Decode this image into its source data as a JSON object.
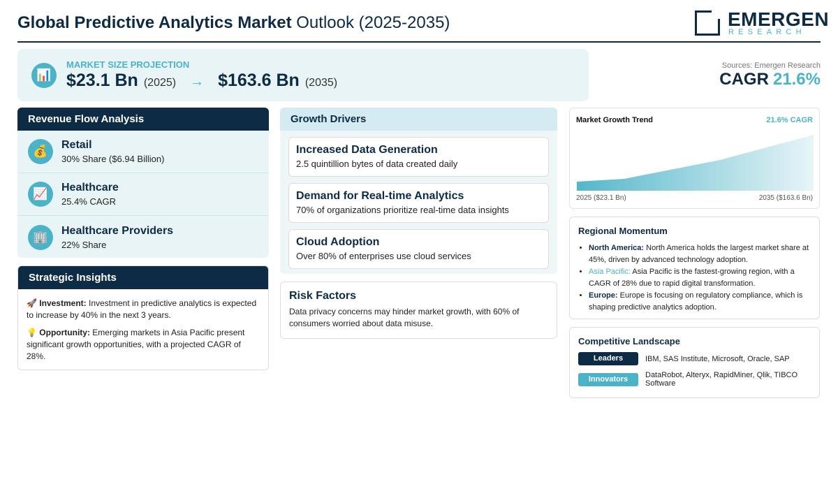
{
  "header": {
    "title_bold": "Global Predictive Analytics Market",
    "title_rest": "Outlook (2025-2035)",
    "logo_main": "EMERGEN",
    "logo_sub": "RESEARCH"
  },
  "projection": {
    "icon": "📊",
    "label": "MARKET SIZE PROJECTION",
    "start_value": "$23.1 Bn",
    "start_year": "(2025)",
    "arrow": "→",
    "end_value": "$163.6 Bn",
    "end_year": "(2035)"
  },
  "cagr": {
    "source": "Sources: Emergen Research",
    "label": "CAGR",
    "value": "21.6%"
  },
  "revenue_flow": {
    "title": "Revenue Flow Analysis",
    "items": [
      {
        "icon": "💰",
        "name": "Retail",
        "detail": "30% Share ($6.94 Billion)"
      },
      {
        "icon": "📈",
        "name": "Healthcare",
        "detail": "25.4% CAGR"
      },
      {
        "icon": "🏢",
        "name": "Healthcare Providers",
        "detail": "22% Share"
      }
    ]
  },
  "strategic_insights": {
    "title": "Strategic Insights",
    "items": [
      {
        "icon": "🚀",
        "label": "Investment:",
        "text": "Investment in predictive analytics is expected to increase by 40% in the next 3 years."
      },
      {
        "icon": "💡",
        "label": "Opportunity:",
        "text": "Emerging markets in Asia Pacific present significant growth opportunities, with a projected CAGR of 28%."
      }
    ]
  },
  "growth_drivers": {
    "title": "Growth Drivers",
    "items": [
      {
        "name": "Increased Data Generation",
        "detail": "2.5 quintillion bytes of data created daily"
      },
      {
        "name": "Demand for Real-time Analytics",
        "detail": "70% of organizations prioritize real-time data insights"
      },
      {
        "name": "Cloud Adoption",
        "detail": "Over 80% of enterprises use cloud services"
      }
    ]
  },
  "risk_factors": {
    "title": "Risk Factors",
    "text": "Data privacy concerns may hinder market growth, with 60% of consumers worried about data misuse."
  },
  "trend": {
    "title": "Market Growth Trend",
    "badge": "21.6% CAGR",
    "start_label": "2025 ($23.1 Bn)",
    "end_label": "2035 ($163.6 Bn)"
  },
  "regional": {
    "title": "Regional Momentum",
    "items": [
      {
        "region": "North America:",
        "text": "North America holds the largest market share at 45%, driven by advanced technology adoption."
      },
      {
        "region": "Asia Pacific:",
        "text": "Asia Pacific is the fastest-growing region, with a CAGR of 28% due to rapid digital transformation."
      },
      {
        "region": "Europe:",
        "text": "Europe is focusing on regulatory compliance, which is shaping predictive analytics adoption."
      }
    ]
  },
  "competitive": {
    "title": "Competitive Landscape",
    "rows": [
      {
        "label": "Leaders",
        "text": "IBM, SAS Institute, Microsoft, Oracle, SAP"
      },
      {
        "label": "Innovators",
        "text": "DataRobot, Alteryx, RapidMiner, Qlik, TIBCO Software"
      }
    ]
  }
}
